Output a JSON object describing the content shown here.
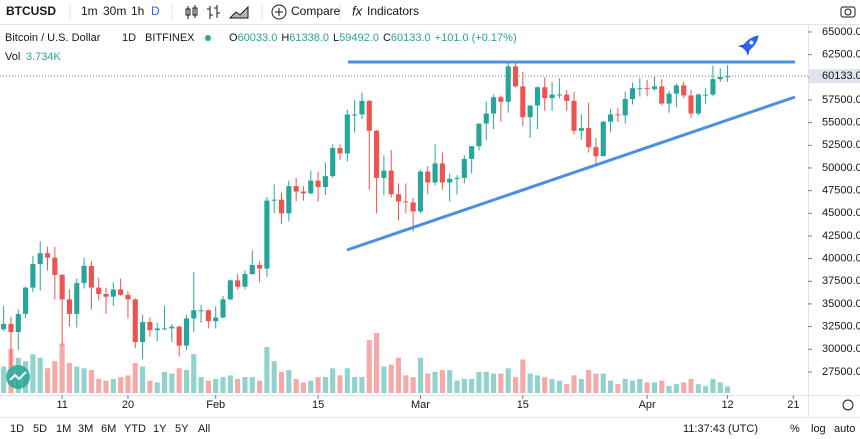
{
  "toolbar": {
    "symbol": "BTCUSD",
    "intervals": [
      "1m",
      "30m",
      "1h",
      "D"
    ],
    "compare": "Compare",
    "indicators": "Indicators"
  },
  "legend": {
    "title": "Bitcoin / U.S. Dollar",
    "interval": "1D",
    "exchange": "BITFINEX",
    "ohlc": [
      {
        "key": "O",
        "value": "60033.0"
      },
      {
        "key": "H",
        "value": "61338.0"
      },
      {
        "key": "L",
        "value": "59492.0"
      },
      {
        "key": "C",
        "value": "60133.0"
      }
    ],
    "change": "+101.0 (+0.17%)",
    "volume_label": "Vol",
    "volume_value": "3.734K"
  },
  "bottom_bar": {
    "ranges": [
      "1D",
      "5D",
      "1M",
      "3M",
      "6M",
      "YTD",
      "1Y",
      "5Y",
      "All"
    ],
    "time": "11:37:43 (UTC)",
    "options": [
      "%",
      "log",
      "auto"
    ]
  },
  "chart_data": {
    "type": "candlestick",
    "up_color": "#26a69a",
    "down_color": "#ef5350",
    "grid": false,
    "xlim": [
      2.5,
      113
    ],
    "ylim": [
      23300,
      65770
    ],
    "xticks": [
      {
        "value": 11,
        "label": "11"
      },
      {
        "value": 20,
        "label": "20"
      },
      {
        "value": 32,
        "label": "Feb"
      },
      {
        "value": 46,
        "label": "15"
      },
      {
        "value": 60,
        "label": "Mar"
      },
      {
        "value": 74,
        "label": "15"
      },
      {
        "value": 91,
        "label": "Apr"
      },
      {
        "value": 102,
        "label": "12"
      },
      {
        "value": 111,
        "label": "21"
      }
    ],
    "yticks": [
      {
        "value": 65000,
        "label": "65000.0"
      },
      {
        "value": 62500,
        "label": "62500.0"
      },
      {
        "value": 60000,
        "label": "60000.0"
      },
      {
        "value": 57500,
        "label": "57500.0"
      },
      {
        "value": 55000,
        "label": "55000.0"
      },
      {
        "value": 52500,
        "label": "52500.0"
      },
      {
        "value": 50000,
        "label": "50000.0"
      },
      {
        "value": 47500,
        "label": "47500.0"
      },
      {
        "value": 45000,
        "label": "45000.0"
      },
      {
        "value": 42500,
        "label": "42500.0"
      },
      {
        "value": 40000,
        "label": "40000.0"
      },
      {
        "value": 37500,
        "label": "37500.0"
      },
      {
        "value": 35000,
        "label": "35000.0"
      },
      {
        "value": 32500,
        "label": "32500.0"
      },
      {
        "value": 30000,
        "label": "30000.0"
      },
      {
        "value": 27500,
        "label": "27500.0"
      }
    ],
    "last_price": {
      "value": 60133,
      "label": "60133.0"
    },
    "x": [
      3,
      4,
      5,
      6,
      7,
      8,
      9,
      10,
      11,
      12,
      13,
      14,
      15,
      16,
      17,
      18,
      19,
      20,
      21,
      22,
      23,
      24,
      25,
      26,
      27,
      28,
      29,
      30,
      31,
      32,
      33,
      34,
      35,
      36,
      37,
      38,
      39,
      40,
      41,
      42,
      43,
      44,
      45,
      46,
      47,
      48,
      49,
      50,
      51,
      52,
      53,
      54,
      55,
      56,
      57,
      58,
      59,
      60,
      61,
      62,
      63,
      64,
      65,
      66,
      67,
      68,
      69,
      70,
      71,
      72,
      73,
      74,
      75,
      76,
      77,
      78,
      79,
      80,
      81,
      82,
      83,
      84,
      85,
      86,
      87,
      88,
      89,
      90,
      91,
      92,
      93,
      94,
      95,
      96,
      97,
      98,
      99,
      100,
      101,
      102
    ],
    "open": [
      32200,
      32800,
      31900,
      33900,
      36800,
      39400,
      40600,
      40100,
      38200,
      35500,
      33900,
      37300,
      39200,
      36800,
      36100,
      35800,
      36600,
      36000,
      35500,
      30800,
      33000,
      32100,
      32300,
      32300,
      32500,
      30400,
      33400,
      34300,
      34300,
      33100,
      33500,
      35500,
      37600,
      36900,
      38300,
      39300,
      38900,
      46400,
      46500,
      45000,
      48000,
      47400,
      47200,
      48600,
      47900,
      49100,
      52200,
      51600,
      55900,
      55900,
      57400,
      54100,
      48900,
      49700,
      47100,
      46300,
      46200,
      45200,
      49600,
      48400,
      50500,
      48400,
      48800,
      48900,
      51000,
      52400,
      54900,
      56000,
      57800,
      57300,
      61200,
      59000,
      55600,
      56900,
      58900,
      57700,
      58100,
      58100,
      57400,
      54100,
      54400,
      52300,
      51300,
      55100,
      55900,
      55800,
      57600,
      58800,
      58800,
      58700,
      59000,
      57100,
      58200,
      59100,
      58000,
      56000,
      58100,
      58100,
      59800,
      60033
    ],
    "high": [
      34800,
      33600,
      34400,
      36900,
      40300,
      41900,
      41300,
      41300,
      38300,
      36600,
      37800,
      40100,
      39700,
      37900,
      36800,
      37400,
      37800,
      36400,
      35600,
      33800,
      33500,
      32900,
      34800,
      32800,
      32600,
      33800,
      38500,
      34900,
      34400,
      34700,
      35900,
      37700,
      38300,
      38700,
      40900,
      39700,
      46800,
      48200,
      47300,
      48600,
      48900,
      48000,
      49700,
      49600,
      50600,
      52600,
      52600,
      56400,
      57500,
      58300,
      57500,
      54200,
      51400,
      52000,
      48300,
      48300,
      46700,
      49800,
      50200,
      52600,
      51700,
      49400,
      49200,
      51400,
      52400,
      54900,
      57300,
      58100,
      58000,
      61800,
      61600,
      60600,
      56900,
      59000,
      60000,
      59500,
      59900,
      58600,
      58400,
      55900,
      57200,
      53300,
      55200,
      56500,
      56600,
      58400,
      59400,
      59900,
      59700,
      60200,
      59800,
      58500,
      59300,
      59500,
      58600,
      58200,
      58800,
      61300,
      61000,
      61338
    ],
    "low": [
      32000,
      28100,
      29900,
      33400,
      36300,
      36500,
      38700,
      35500,
      30400,
      32500,
      32400,
      36700,
      34400,
      35400,
      33900,
      34800,
      35900,
      33400,
      30100,
      28900,
      31400,
      30900,
      32100,
      30800,
      29200,
      29900,
      31900,
      32900,
      32300,
      32300,
      33400,
      35400,
      36600,
      36600,
      38200,
      37400,
      38000,
      45000,
      43800,
      44100,
      46300,
      46400,
      47100,
      46300,
      47000,
      48900,
      50900,
      50700,
      53900,
      55400,
      47600,
      45000,
      47000,
      46700,
      44200,
      45000,
      43000,
      45000,
      47100,
      48100,
      47600,
      46300,
      47100,
      48300,
      49400,
      51900,
      53100,
      54300,
      55100,
      56100,
      58900,
      54600,
      53300,
      54300,
      56300,
      56300,
      57700,
      56300,
      53700,
      53100,
      51700,
      50400,
      51300,
      53900,
      55100,
      54900,
      57000,
      57900,
      57900,
      58500,
      56900,
      56100,
      56700,
      57700,
      55500,
      55800,
      57100,
      57900,
      59500,
      59492
    ],
    "close": [
      32800,
      31900,
      33900,
      36800,
      39400,
      40600,
      40100,
      38200,
      35500,
      33900,
      37300,
      39200,
      36800,
      36100,
      35800,
      36600,
      36000,
      35500,
      30800,
      33000,
      32100,
      32300,
      32300,
      32500,
      30400,
      33400,
      34300,
      34300,
      33100,
      33500,
      35500,
      37600,
      36900,
      38300,
      39300,
      38900,
      46400,
      46500,
      45000,
      48000,
      47400,
      47200,
      48600,
      47900,
      49100,
      52200,
      51600,
      55900,
      55900,
      57400,
      54100,
      48900,
      49700,
      47100,
      46300,
      46200,
      45200,
      49600,
      48400,
      50500,
      48400,
      48800,
      48900,
      51000,
      52400,
      54900,
      56000,
      57800,
      57300,
      61200,
      59000,
      55600,
      56900,
      58900,
      57700,
      58100,
      58100,
      57400,
      54100,
      54400,
      52300,
      51300,
      55100,
      55900,
      55800,
      57600,
      58800,
      58800,
      58700,
      59000,
      57100,
      58200,
      59100,
      58000,
      56000,
      58100,
      58100,
      59800,
      60032,
      60133
    ],
    "volume": [
      15000,
      25000,
      20000,
      18000,
      22000,
      20000,
      14000,
      18000,
      28000,
      17000,
      15000,
      14000,
      13000,
      8000,
      7000,
      8000,
      9000,
      10000,
      17000,
      15000,
      7000,
      6000,
      12000,
      11000,
      14000,
      13000,
      22000,
      9000,
      7000,
      8000,
      9000,
      10000,
      8000,
      9000,
      9000,
      7000,
      26000,
      18000,
      12000,
      13000,
      8000,
      6000,
      7000,
      9000,
      9000,
      14000,
      10000,
      14000,
      9000,
      9000,
      30000,
      34000,
      15000,
      16000,
      20000,
      10000,
      9000,
      20000,
      11000,
      12000,
      13000,
      13000,
      7000,
      8000,
      8000,
      12000,
      12000,
      11000,
      11000,
      14000,
      9000,
      19000,
      11000,
      10000,
      9000,
      8000,
      7000,
      5000,
      10000,
      8000,
      13000,
      11000,
      11000,
      7000,
      5000,
      8000,
      7000,
      8000,
      6000,
      6000,
      7000,
      4000,
      5000,
      6000,
      8000,
      5000,
      4000,
      8000,
      6000,
      3734
    ]
  }
}
